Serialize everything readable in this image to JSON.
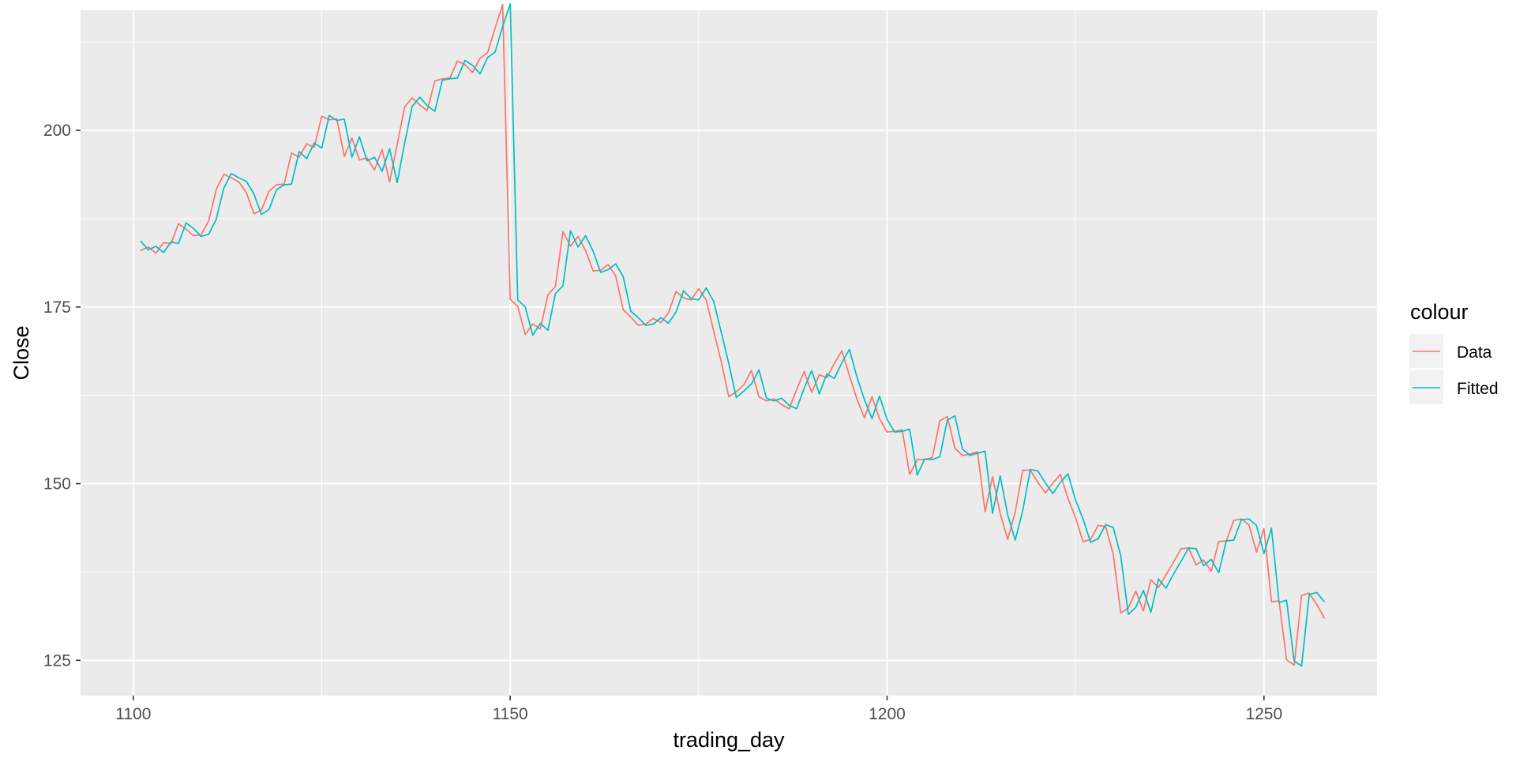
{
  "chart_data": {
    "type": "line",
    "xlabel": "trading_day",
    "ylabel": "Close",
    "xlim": [
      1093,
      1265
    ],
    "ylim": [
      120,
      217
    ],
    "x_ticks": [
      1100,
      1150,
      1200,
      1250
    ],
    "y_ticks": [
      125,
      150,
      175,
      200
    ],
    "x_tick_labels": [
      "1100",
      "1150",
      "1200",
      "1250"
    ],
    "y_tick_labels": [
      "125",
      "150",
      "175",
      "200"
    ],
    "grid": true,
    "panel_background": "#ebebeb",
    "legend": {
      "title": "colour",
      "position": "right",
      "entries": [
        "Data",
        "Fitted"
      ]
    },
    "x": [
      1101,
      1102,
      1103,
      1104,
      1105,
      1106,
      1107,
      1108,
      1109,
      1110,
      1111,
      1112,
      1113,
      1114,
      1115,
      1116,
      1117,
      1118,
      1119,
      1120,
      1121,
      1122,
      1123,
      1124,
      1125,
      1126,
      1127,
      1128,
      1129,
      1130,
      1131,
      1132,
      1133,
      1134,
      1135,
      1136,
      1137,
      1138,
      1139,
      1140,
      1141,
      1142,
      1143,
      1144,
      1145,
      1146,
      1147,
      1148,
      1149,
      1150,
      1151,
      1152,
      1153,
      1154,
      1155,
      1156,
      1157,
      1158,
      1159,
      1160,
      1161,
      1162,
      1163,
      1164,
      1165,
      1166,
      1167,
      1168,
      1169,
      1170,
      1171,
      1172,
      1173,
      1174,
      1175,
      1176,
      1177,
      1178,
      1179,
      1180,
      1181,
      1182,
      1183,
      1184,
      1185,
      1186,
      1187,
      1188,
      1189,
      1190,
      1191,
      1192,
      1193,
      1194,
      1195,
      1196,
      1197,
      1198,
      1199,
      1200,
      1201,
      1202,
      1203,
      1204,
      1205,
      1206,
      1207,
      1208,
      1209,
      1210,
      1211,
      1212,
      1213,
      1214,
      1215,
      1216,
      1217,
      1218,
      1219,
      1220,
      1221,
      1222,
      1223,
      1224,
      1225,
      1226,
      1227,
      1228,
      1229,
      1230,
      1231,
      1232,
      1233,
      1234,
      1235,
      1236,
      1237,
      1238,
      1239,
      1240,
      1241,
      1242,
      1243,
      1244,
      1245,
      1246,
      1247,
      1248,
      1249,
      1250,
      1251,
      1252,
      1253,
      1254,
      1255,
      1256,
      1257,
      1258
    ],
    "series": [
      {
        "name": "Data",
        "color": "#f8766d",
        "values": [
          183.0,
          183.5,
          182.6,
          184.1,
          184.0,
          186.8,
          186.0,
          185.1,
          185.2,
          187.2,
          191.6,
          193.8,
          193.3,
          192.7,
          191.2,
          188.2,
          188.7,
          191.4,
          192.3,
          192.4,
          196.8,
          196.2,
          198.1,
          197.6,
          202.0,
          201.5,
          201.6,
          196.3,
          198.9,
          195.8,
          196.1,
          194.4,
          197.3,
          192.7,
          198.0,
          203.3,
          204.6,
          203.6,
          202.8,
          207.0,
          207.3,
          207.4,
          209.8,
          209.3,
          208.2,
          210.2,
          211.0,
          214.5,
          217.8,
          176.1,
          175.1,
          171.1,
          172.6,
          171.9,
          176.7,
          177.9,
          185.7,
          183.6,
          185.0,
          183.0,
          180.1,
          180.2,
          181.0,
          179.4,
          174.6,
          173.6,
          172.4,
          172.6,
          173.4,
          172.8,
          174.2,
          177.2,
          176.3,
          176.0,
          177.6,
          176.0,
          171.6,
          167.2,
          162.3,
          163.0,
          164.0,
          166.0,
          162.3,
          161.7,
          162.0,
          161.2,
          160.6,
          163.3,
          165.9,
          162.9,
          165.4,
          165.0,
          167.0,
          168.8,
          165.3,
          162.0,
          159.3,
          162.3,
          159.2,
          157.3,
          157.4,
          157.6,
          151.3,
          153.4,
          153.4,
          153.7,
          158.9,
          159.5,
          155.0,
          154.0,
          154.2,
          154.5,
          146.0,
          151.0,
          145.8,
          142.1,
          146.0,
          151.9,
          151.9,
          150.2,
          148.7,
          150.1,
          151.3,
          147.9,
          145.2,
          141.8,
          142.1,
          144.1,
          143.9,
          140.0,
          131.7,
          132.4,
          134.8,
          132.0,
          136.4,
          135.3,
          137.1,
          138.9,
          140.8,
          140.9,
          138.5,
          139.2,
          137.6,
          141.8,
          141.9,
          144.8,
          145.0,
          144.2,
          140.3,
          143.6,
          133.3,
          133.4,
          125.1,
          124.3,
          134.2,
          134.5,
          132.9,
          131.0
        ]
      },
      {
        "name": "Fitted",
        "color": "#00bfc4",
        "values": [
          184.3,
          183.1,
          183.6,
          182.7,
          184.2,
          184.0,
          186.9,
          186.1,
          185.0,
          185.3,
          187.4,
          191.8,
          193.9,
          193.3,
          192.8,
          191.0,
          188.1,
          188.8,
          191.6,
          192.3,
          192.4,
          197.0,
          196.0,
          198.2,
          197.5,
          202.1,
          201.4,
          201.6,
          196.2,
          199.1,
          195.7,
          196.2,
          194.2,
          197.4,
          192.6,
          198.2,
          203.4,
          204.7,
          203.5,
          202.7,
          207.1,
          207.3,
          207.4,
          209.9,
          209.2,
          208.0,
          210.3,
          211.1,
          214.7,
          217.9,
          176.0,
          175.0,
          171.0,
          172.7,
          171.7,
          176.9,
          178.0,
          185.8,
          183.5,
          185.1,
          182.9,
          179.9,
          180.3,
          181.1,
          179.3,
          174.4,
          173.5,
          172.4,
          172.6,
          173.5,
          172.7,
          174.3,
          177.3,
          176.2,
          176.0,
          177.7,
          175.8,
          171.4,
          167.0,
          162.2,
          163.1,
          164.1,
          166.1,
          162.1,
          161.7,
          162.1,
          161.1,
          160.6,
          163.5,
          166.0,
          162.7,
          165.5,
          164.9,
          167.1,
          169.0,
          165.1,
          161.9,
          159.2,
          162.4,
          159.1,
          157.3,
          157.4,
          157.7,
          151.2,
          153.5,
          153.4,
          153.8,
          159.0,
          159.6,
          154.9,
          154.0,
          154.3,
          154.6,
          145.8,
          151.1,
          145.6,
          142.0,
          146.2,
          152.0,
          151.8,
          150.1,
          148.6,
          150.2,
          151.4,
          147.7,
          145.0,
          141.7,
          142.2,
          144.2,
          143.8,
          139.8,
          131.5,
          132.5,
          134.9,
          131.8,
          136.5,
          135.2,
          137.2,
          139.0,
          140.9,
          140.8,
          138.4,
          139.3,
          137.4,
          141.9,
          142.0,
          144.9,
          145.0,
          144.1,
          140.1,
          143.7,
          133.2,
          133.5,
          124.9,
          124.2,
          134.3,
          134.6,
          133.3
        ]
      }
    ]
  }
}
